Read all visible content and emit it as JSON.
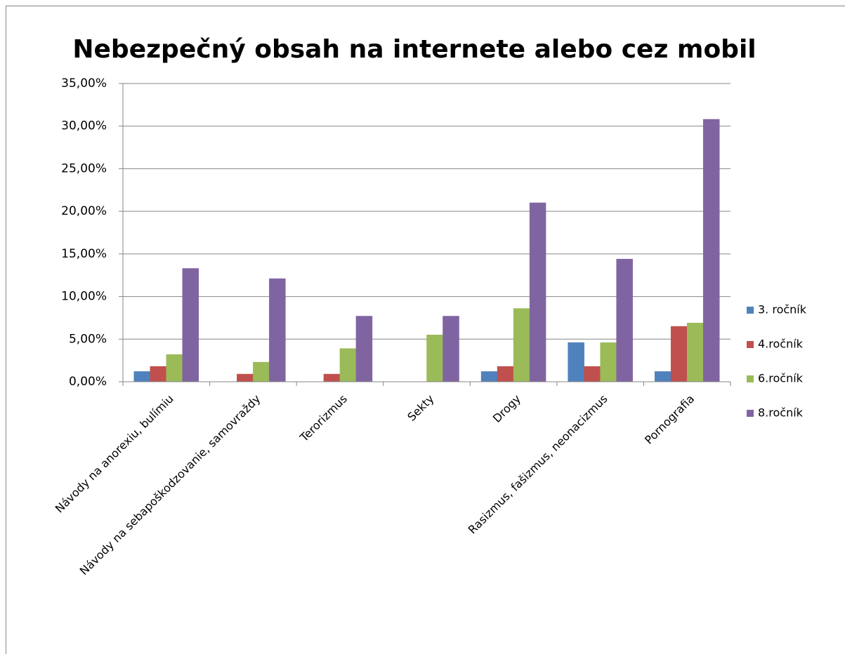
{
  "chart_data": {
    "type": "bar",
    "title": "Nebezpečný obsah na internete alebo cez mobil",
    "categories": [
      "Návody na anorexiu, bulímiu",
      "Návody na sebapoškodzovanie, samovraždy",
      "Terorizmus",
      "Sekty",
      "Drogy",
      "Rasizmus, fašizmus, neonacizmus",
      "Pornografia"
    ],
    "series": [
      {
        "name": "3. ročník",
        "color": "#4f81bd",
        "values": [
          1.2,
          0,
          0,
          0,
          1.2,
          4.6,
          1.2
        ]
      },
      {
        "name": "4.ročník",
        "color": "#c0504d",
        "values": [
          1.8,
          0.9,
          0.9,
          0,
          1.8,
          1.8,
          6.5
        ]
      },
      {
        "name": "6.ročník",
        "color": "#9bbb59",
        "values": [
          3.2,
          2.3,
          3.9,
          5.5,
          8.6,
          4.6,
          6.9
        ]
      },
      {
        "name": "8.ročník",
        "color": "#8064a2",
        "values": [
          13.3,
          12.1,
          7.7,
          7.7,
          21.0,
          14.4,
          30.8
        ]
      }
    ],
    "ylim": [
      0,
      35
    ],
    "yticks": [
      {
        "value": 0,
        "label": "0,00%"
      },
      {
        "value": 5,
        "label": "5,00%"
      },
      {
        "value": 10,
        "label": "10,00%"
      },
      {
        "value": 15,
        "label": "15,00%"
      },
      {
        "value": 20,
        "label": "20,00%"
      },
      {
        "value": 25,
        "label": "25,00%"
      },
      {
        "value": 30,
        "label": "30,00%"
      },
      {
        "value": 35,
        "label": "35,00%"
      }
    ],
    "grid": true,
    "legend": "right"
  }
}
